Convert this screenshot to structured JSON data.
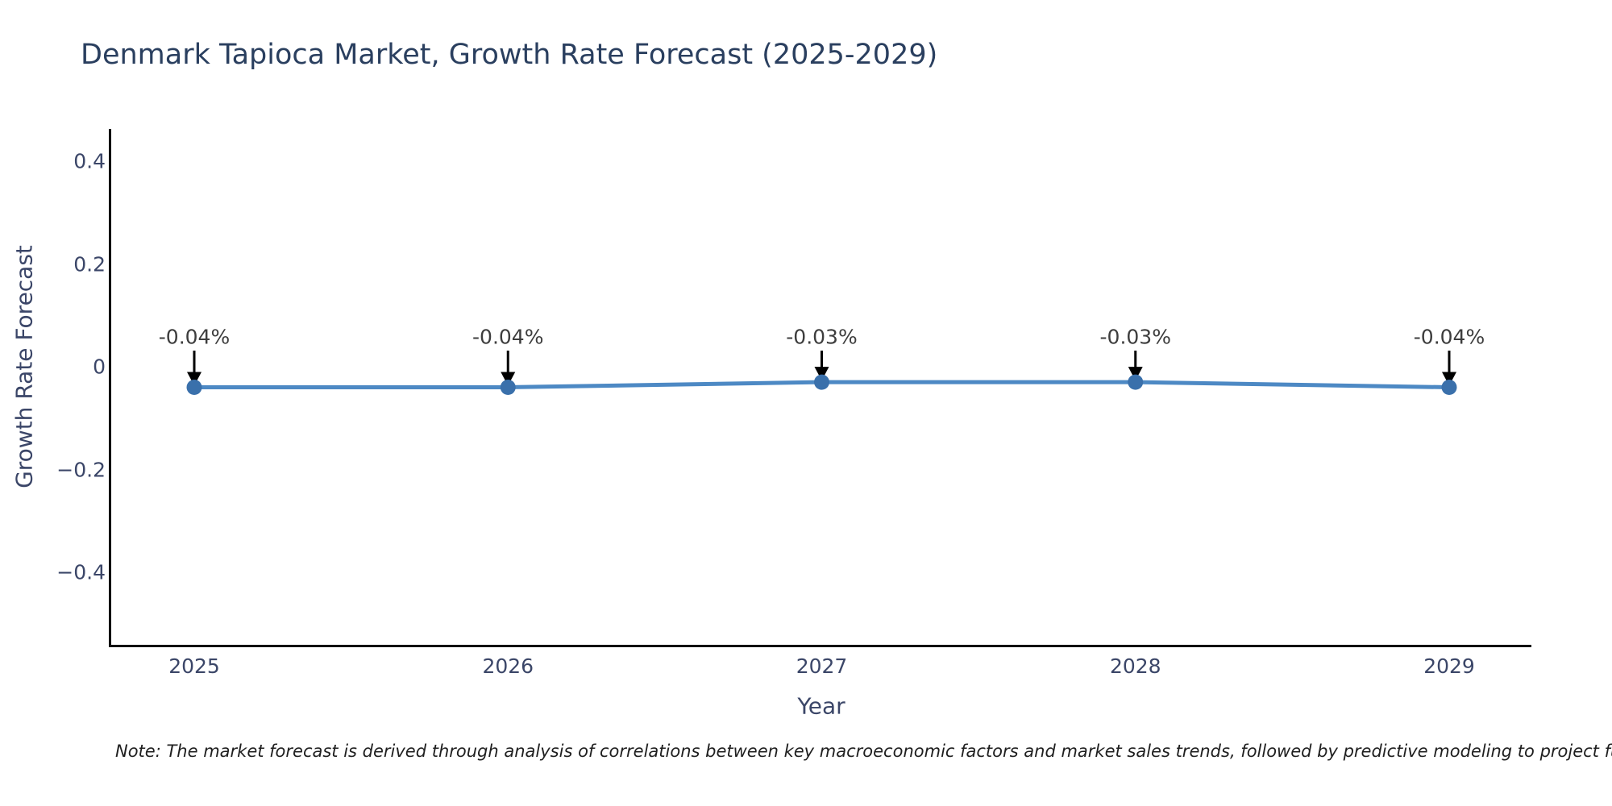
{
  "chart_data": {
    "type": "line",
    "title": "Denmark Tapioca Market, Growth Rate Forecast (2025-2029)",
    "xlabel": "Year",
    "ylabel": "Growth Rate Forecast",
    "categories": [
      "2025",
      "2026",
      "2027",
      "2028",
      "2029"
    ],
    "series": [
      {
        "name": "Growth Rate Forecast",
        "values": [
          -0.04,
          -0.04,
          -0.03,
          -0.03,
          -0.04
        ]
      }
    ],
    "point_labels": [
      "-0.04%",
      "-0.04%",
      "-0.03%",
      "-0.03%",
      "-0.04%"
    ],
    "yticks": [
      0.4,
      0.2,
      0,
      -0.2,
      -0.4
    ],
    "ytick_labels": [
      "0.4",
      "0.2",
      "0",
      "−0.2",
      "−0.4"
    ],
    "ylim": [
      -0.54,
      0.46
    ],
    "grid": false,
    "legend": "none",
    "line_color": "#4d89c4",
    "marker_color": "#3a70ab",
    "annotation_arrow_color": "#000000",
    "spine_color": "#111111"
  },
  "note": "Note: The market forecast is derived through analysis of correlations between key macroeconomic factors and market sales trends, followed by predictive modeling to project future sa"
}
